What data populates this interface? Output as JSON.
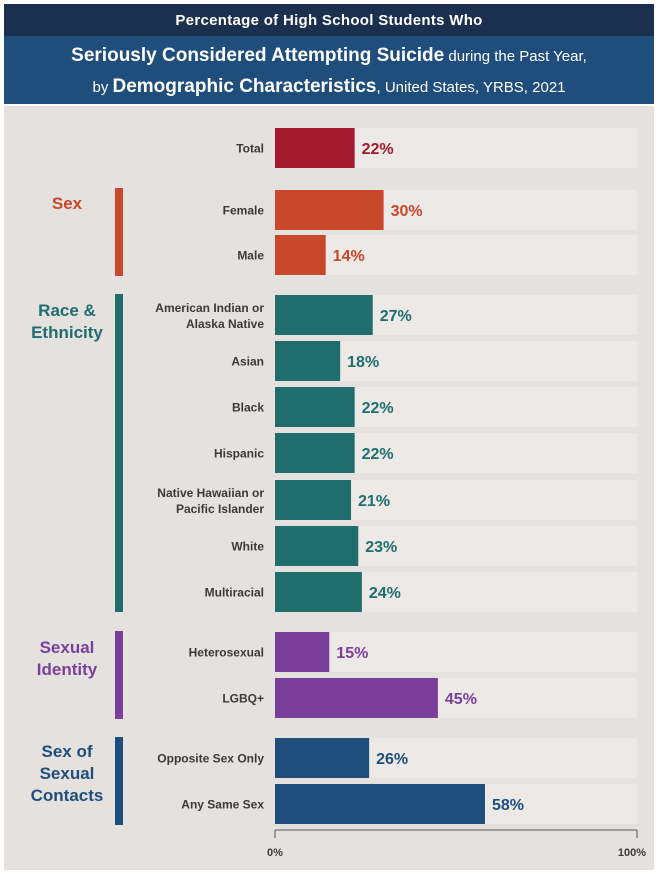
{
  "header": {
    "top_title": "Percentage of High School Students Who",
    "line1_bold": "Seriously Considered Attempting Suicide",
    "line1_rest": " during the Past Year,",
    "line2_pre": "by ",
    "line2_bold": "Demographic Characteristics",
    "line2_rest": ", United States, YRBS, 2021"
  },
  "colors": {
    "total": "#a3192d",
    "sex": "#c9472a",
    "race": "#1f6e6d",
    "identity": "#7a3f9b",
    "contacts": "#1f4e7c"
  },
  "groups": [
    {
      "key": "total",
      "label": "",
      "color": "#a3192d"
    },
    {
      "key": "sex",
      "label": "Sex",
      "color": "#c9472a"
    },
    {
      "key": "race",
      "label": "Race & Ethnicity",
      "color": "#1f6e6d"
    },
    {
      "key": "identity",
      "label": "Sexual Identity",
      "color": "#7a3f9b"
    },
    {
      "key": "contacts",
      "label": "Sex of Sexual Contacts",
      "color": "#1f4e7c"
    }
  ],
  "chart_data": {
    "type": "bar",
    "orientation": "horizontal",
    "xlim": [
      0,
      100
    ],
    "x_tick_labels": [
      "0%",
      "100%"
    ],
    "categories": [
      "Total",
      "Female",
      "Male",
      "American Indian or Alaska Native",
      "Asian",
      "Black",
      "Hispanic",
      "Native Hawaiian or Pacific Islander",
      "White",
      "Multiracial",
      "Heterosexual",
      "LGBQ+",
      "Opposite Sex Only",
      "Any Same Sex"
    ],
    "values": [
      22,
      30,
      14,
      27,
      18,
      22,
      22,
      21,
      23,
      24,
      15,
      45,
      26,
      58
    ],
    "value_labels": [
      "22%",
      "30%",
      "14%",
      "27%",
      "18%",
      "22%",
      "22%",
      "21%",
      "23%",
      "24%",
      "15%",
      "45%",
      "26%",
      "58%"
    ],
    "group_of": [
      "total",
      "sex",
      "sex",
      "race",
      "race",
      "race",
      "race",
      "race",
      "race",
      "race",
      "identity",
      "identity",
      "contacts",
      "contacts"
    ]
  }
}
